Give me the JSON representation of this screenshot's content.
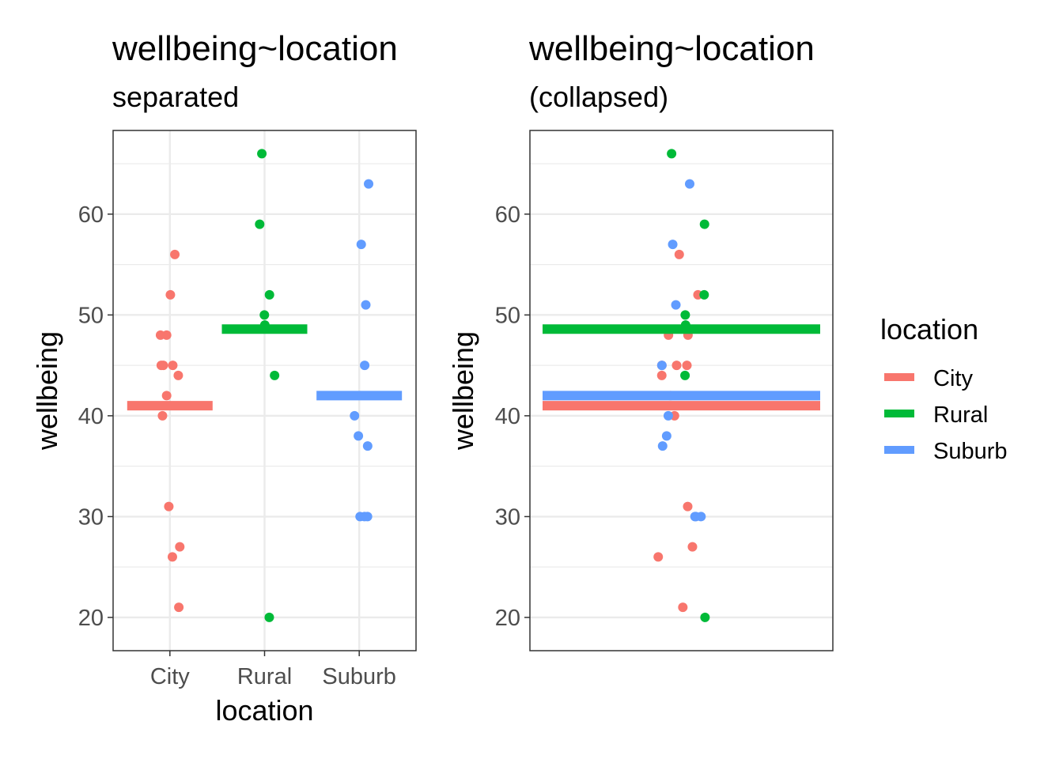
{
  "chart_data": [
    {
      "type": "scatter",
      "title": "wellbeing~location",
      "subtitle": "separated",
      "xlabel": "location",
      "ylabel": "wellbeing",
      "categories": [
        "City",
        "Rural",
        "Suburb"
      ],
      "ylim": [
        16.7,
        68.3
      ],
      "yticks": [
        20,
        30,
        40,
        50,
        60
      ],
      "grid": true,
      "series": [
        {
          "name": "City",
          "color": "#F8766D",
          "mean": 41,
          "values": [
            56,
            52,
            48,
            48,
            45,
            45,
            45,
            44,
            42,
            40,
            31,
            27,
            26,
            21
          ]
        },
        {
          "name": "Rural",
          "color": "#00BA38",
          "mean": 48.6,
          "values": [
            66,
            59,
            52,
            50,
            49,
            44,
            20
          ]
        },
        {
          "name": "Suburb",
          "color": "#619CFF",
          "mean": 42,
          "values": [
            63,
            57,
            51,
            45,
            40,
            38,
            37,
            30,
            30,
            30
          ]
        }
      ]
    },
    {
      "type": "scatter",
      "title": "wellbeing~location",
      "subtitle": "(collapsed)",
      "xlabel": "",
      "ylabel": "wellbeing",
      "ylim": [
        16.7,
        68.3
      ],
      "yticks": [
        20,
        30,
        40,
        50,
        60
      ],
      "grid": true,
      "legend": {
        "title": "location",
        "position": "right",
        "entries": [
          "City",
          "Rural",
          "Suburb"
        ]
      },
      "series": [
        {
          "name": "City",
          "color": "#F8766D",
          "mean": 41,
          "values": [
            56,
            52,
            48,
            48,
            45,
            45,
            45,
            44,
            42,
            40,
            31,
            27,
            26,
            21
          ]
        },
        {
          "name": "Rural",
          "color": "#00BA38",
          "mean": 48.6,
          "values": [
            66,
            59,
            52,
            50,
            49,
            44,
            20
          ]
        },
        {
          "name": "Suburb",
          "color": "#619CFF",
          "mean": 42,
          "values": [
            63,
            57,
            51,
            45,
            40,
            38,
            37,
            30,
            30,
            30
          ]
        }
      ]
    }
  ]
}
